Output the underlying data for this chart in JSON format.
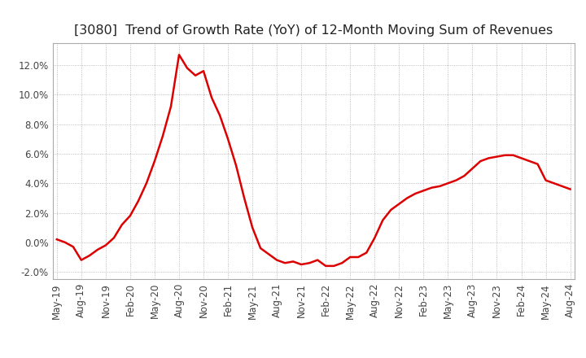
{
  "title": "[3080]  Trend of Growth Rate (YoY) of 12-Month Moving Sum of Revenues",
  "title_fontsize": 11.5,
  "line_color": "#dd0000",
  "background_color": "#ffffff",
  "grid_color": "#aaaaaa",
  "ylim": [
    -0.025,
    0.135
  ],
  "yticks": [
    -0.02,
    0.0,
    0.02,
    0.04,
    0.06,
    0.08,
    0.1,
    0.12
  ],
  "values": [
    0.002,
    0.0,
    -0.003,
    -0.012,
    -0.009,
    -0.005,
    -0.002,
    0.003,
    0.012,
    0.018,
    0.028,
    0.04,
    0.055,
    0.072,
    0.092,
    0.127,
    0.118,
    0.113,
    0.116,
    0.098,
    0.086,
    0.07,
    0.052,
    0.03,
    0.01,
    -0.004,
    -0.008,
    -0.012,
    -0.014,
    -0.013,
    -0.015,
    -0.014,
    -0.012,
    -0.016,
    -0.016,
    -0.014,
    -0.01,
    -0.01,
    -0.007,
    0.003,
    0.015,
    0.022,
    0.026,
    0.03,
    0.033,
    0.035,
    0.037,
    0.038,
    0.04,
    0.042,
    0.045,
    0.05,
    0.055,
    0.057,
    0.058,
    0.059,
    0.059,
    0.057,
    0.055,
    0.053,
    0.042,
    0.04,
    0.038,
    0.036
  ],
  "xtick_labels": [
    "May-19",
    "Aug-19",
    "Nov-19",
    "Feb-20",
    "May-20",
    "Aug-20",
    "Nov-20",
    "Feb-21",
    "May-21",
    "Aug-21",
    "Nov-21",
    "Feb-22",
    "May-22",
    "Aug-22",
    "Nov-22",
    "Feb-23",
    "May-23",
    "Aug-23",
    "Nov-23",
    "Feb-24",
    "May-24",
    "Aug-24"
  ],
  "xtick_indices": [
    0,
    3,
    6,
    9,
    12,
    15,
    18,
    21,
    24,
    27,
    30,
    33,
    36,
    39,
    42,
    45,
    48,
    51,
    54,
    57,
    60,
    63
  ]
}
